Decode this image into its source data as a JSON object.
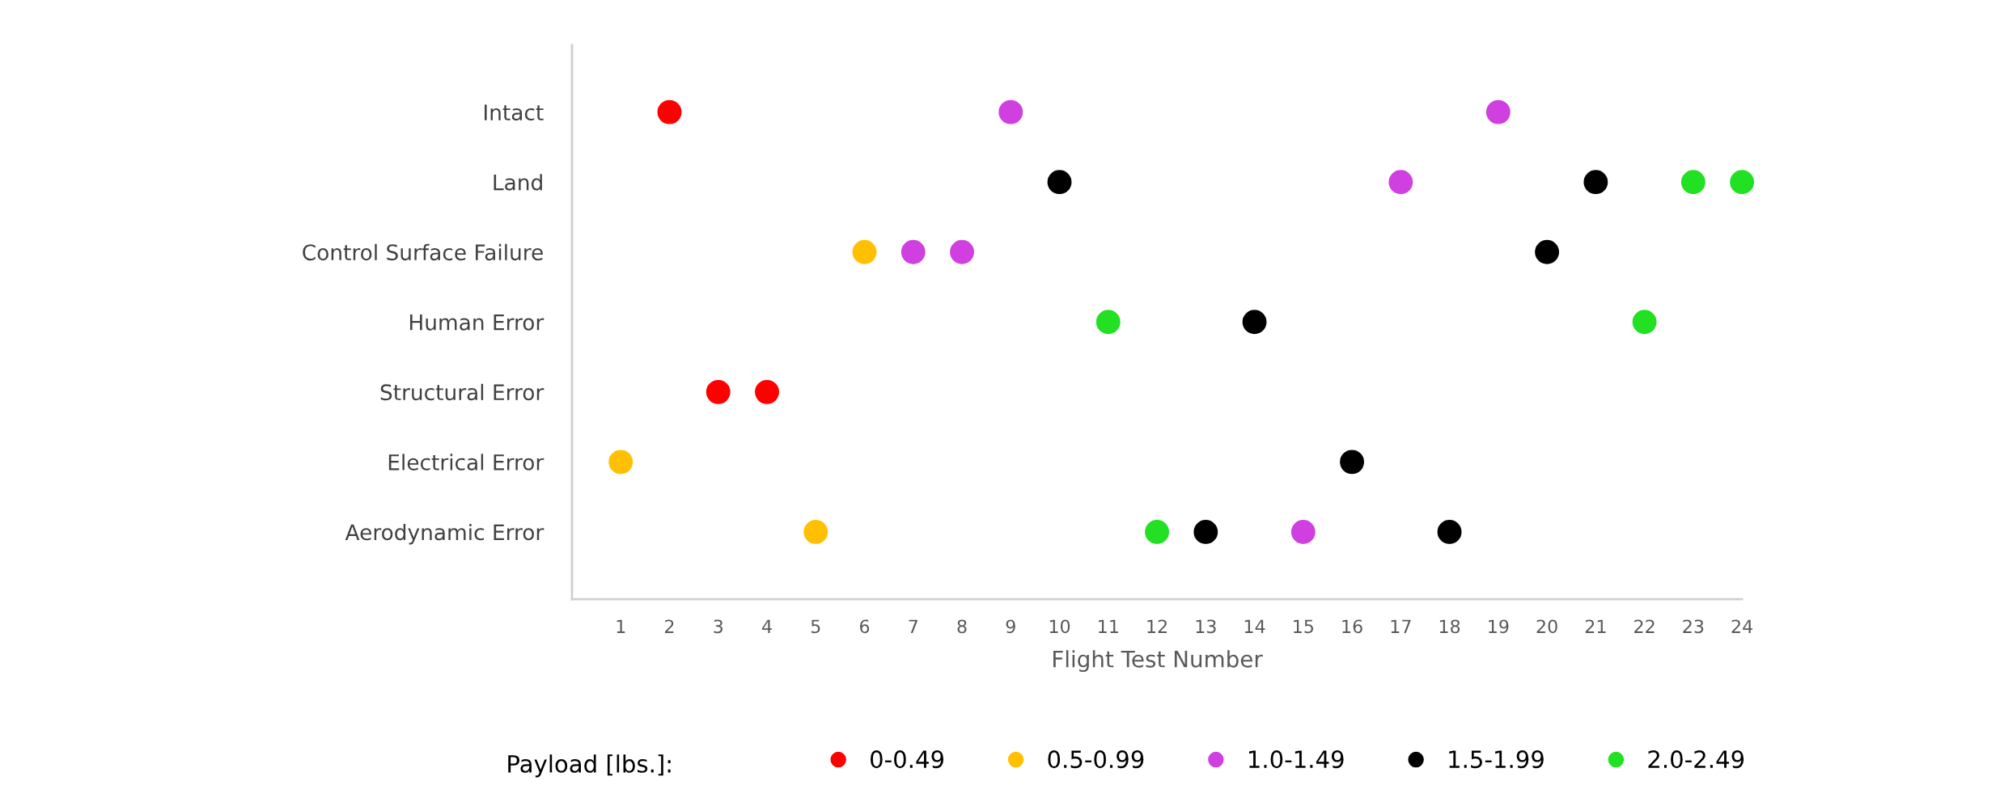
{
  "chart_data": {
    "type": "scatter",
    "orientation": "horizontal",
    "xlabel": "Flight Test Number",
    "legend_title": "Payload [lbs.]:",
    "categories": [
      "Intact",
      "Land",
      "Control Surface Failure",
      "Human Error",
      "Structural Error",
      "Electrical Error",
      "Aerodynamic Error"
    ],
    "xlim": [
      0,
      24
    ],
    "xticks": [
      1,
      2,
      3,
      4,
      5,
      6,
      7,
      8,
      9,
      10,
      11,
      12,
      13,
      14,
      15,
      16,
      17,
      18,
      19,
      20,
      21,
      22,
      23,
      24
    ],
    "grid": false,
    "legend": "bottom",
    "marker": "circle",
    "series": [
      {
        "name": "0-0.49",
        "color": "#ff0000",
        "values": [
          2,
          null,
          null,
          null,
          3,
          null,
          null
        ]
      },
      {
        "color": "#ff0000",
        "values": [
          null,
          null,
          null,
          null,
          4,
          null,
          null
        ]
      },
      {
        "name": "0.5-0.99",
        "color": "#ffc000",
        "values": [
          null,
          null,
          6,
          null,
          null,
          1,
          5
        ]
      },
      {
        "name": "1.0-1.49",
        "color": "#d040e0",
        "values": [
          9,
          17,
          7,
          null,
          null,
          null,
          15
        ]
      },
      {
        "color": "#d040e0",
        "values": [
          19,
          null,
          8,
          null,
          null,
          null,
          null
        ]
      },
      {
        "name": "1.5-1.99",
        "color": "#000000",
        "values": [
          null,
          10,
          20,
          14,
          null,
          16,
          13
        ]
      },
      {
        "color": "#000000",
        "values": [
          null,
          21,
          null,
          null,
          null,
          null,
          18
        ]
      },
      {
        "name": "2.0-2.49",
        "color": "#22e022",
        "values": [
          null,
          23,
          null,
          11,
          null,
          null,
          12
        ]
      },
      {
        "color": "#22e022",
        "values": [
          null,
          24,
          null,
          22,
          null,
          null,
          null
        ]
      }
    ]
  }
}
